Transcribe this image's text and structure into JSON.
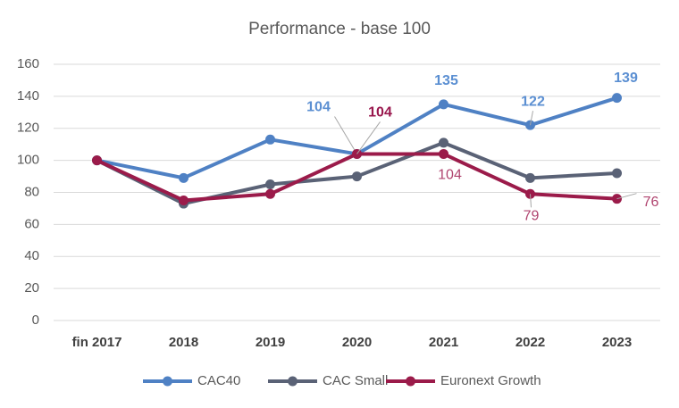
{
  "chart_data": {
    "type": "line",
    "title": "Performance - base 100",
    "categories": [
      "fin 2017",
      "2018",
      "2019",
      "2020",
      "2021",
      "2022",
      "2023"
    ],
    "series": [
      {
        "name": "CAC40",
        "color": "#4f81c4",
        "values": [
          100,
          89,
          113,
          104,
          135,
          122,
          139
        ],
        "value_labels": [
          null,
          null,
          null,
          "104",
          "135",
          "122",
          "139"
        ]
      },
      {
        "name": "CAC Small",
        "color": "#5a6276",
        "values": [
          100,
          73,
          85,
          90,
          111,
          89,
          92
        ]
      },
      {
        "name": "Euronext Growth",
        "color": "#9b1b4a",
        "values": [
          100,
          75,
          79,
          104,
          104,
          79,
          76
        ],
        "value_labels": [
          null,
          null,
          null,
          "104",
          "104",
          "79",
          "76"
        ]
      }
    ],
    "ylim": [
      0,
      160
    ],
    "yticks": [
      0,
      20,
      40,
      60,
      80,
      100,
      120,
      140,
      160
    ],
    "grid": true,
    "legend": "bottom"
  }
}
